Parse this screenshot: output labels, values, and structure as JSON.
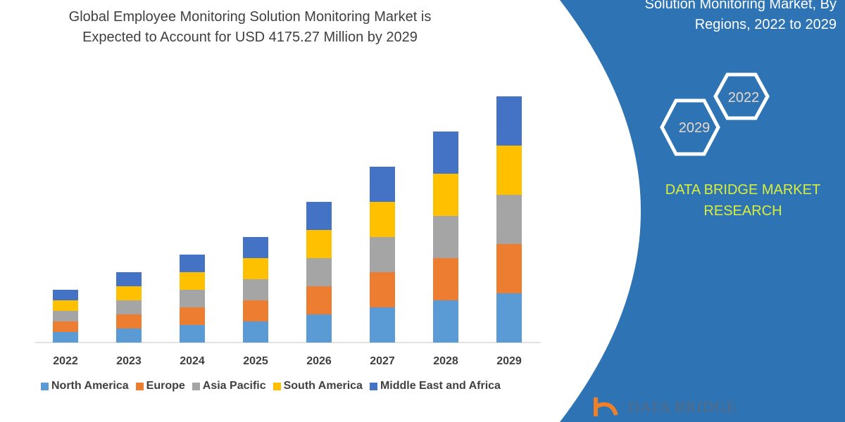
{
  "title": [
    "Global Employee Monitoring Solution Monitoring Market is",
    "Expected to Account for USD 4175.27 Million by 2029"
  ],
  "side_panel": {
    "title": [
      "Solution Monitoring Market, By",
      "Regions, 2022 to 2029"
    ],
    "hexagon_labels": [
      "2022",
      "2029"
    ],
    "brand": [
      "DATA BRIDGE MARKET",
      "RESEARCH"
    ],
    "logo_text": "DATA BRIDGE",
    "color": "#2e74b5",
    "brand_color": "#d9ef3c"
  },
  "chart_data": {
    "type": "bar",
    "stacked": true,
    "categories": [
      "2022",
      "2023",
      "2024",
      "2025",
      "2026",
      "2027",
      "2028",
      "2029"
    ],
    "series": [
      {
        "name": "North America",
        "color": "#5b9bd5",
        "values": [
          15,
          20,
          25,
          30,
          40,
          50,
          60,
          70
        ]
      },
      {
        "name": "Europe",
        "color": "#ed7d31",
        "values": [
          15,
          20,
          25,
          30,
          40,
          50,
          60,
          70
        ]
      },
      {
        "name": "Asia Pacific",
        "color": "#a5a5a5",
        "values": [
          15,
          20,
          25,
          30,
          40,
          50,
          60,
          70
        ]
      },
      {
        "name": "South America",
        "color": "#ffc000",
        "values": [
          15,
          20,
          25,
          30,
          40,
          50,
          60,
          70
        ]
      },
      {
        "name": "Middle East and Africa",
        "color": "#4472c4",
        "values": [
          15,
          20,
          25,
          30,
          40,
          50,
          60,
          70
        ]
      }
    ],
    "ylim": [
      0,
      352
    ],
    "yaxis_visible": false,
    "grid": false,
    "legend_position": "bottom"
  }
}
